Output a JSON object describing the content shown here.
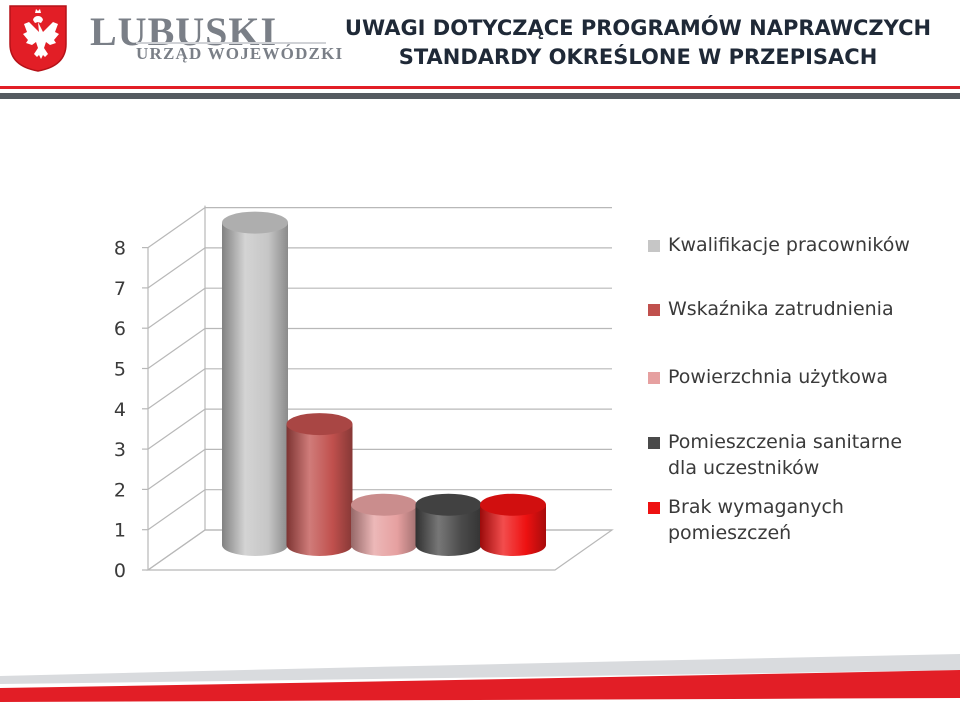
{
  "header": {
    "logo_main": "LUBUSKI",
    "logo_sub": "URZĄD WOJEWÓDZKI",
    "title_line1": "UWAGI DOTYCZĄCE PROGRAMÓW NAPRAWCZYCH",
    "title_line2": "STANDARDY OKREŚLONE W PRZEPISACH"
  },
  "colors": {
    "brand_red": "#e21e26",
    "brand_gray": "#555a60"
  },
  "chart_data": {
    "type": "bar",
    "style": "3d-cylinder",
    "grid": true,
    "legend_position": "right",
    "ylim": [
      0,
      8
    ],
    "yticks": [
      "0",
      "1",
      "2",
      "3",
      "4",
      "5",
      "6",
      "7",
      "8"
    ],
    "series": [
      {
        "name": "Kwalifikacje pracowników",
        "value": 8,
        "color": "#c6c6c6"
      },
      {
        "name": "Wskaźnika zatrudnienia",
        "value": 3,
        "color": "#c0504d"
      },
      {
        "name": "Powierzchnia użytkowa",
        "value": 1,
        "color": "#e6a0a0"
      },
      {
        "name": "Pomieszczenia sanitarne dla uczestników",
        "value": 1,
        "color": "#4a4a4a"
      },
      {
        "name": "Brak wymaganych pomieszczeń",
        "value": 1,
        "color": "#ee1111"
      }
    ]
  }
}
